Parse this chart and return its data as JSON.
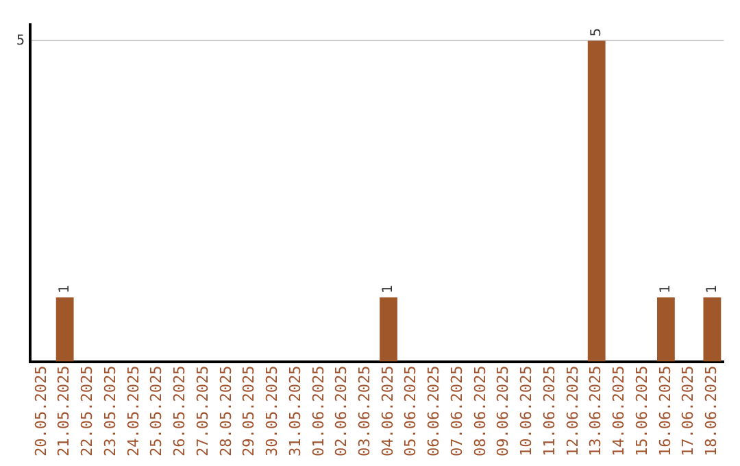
{
  "chart_data": {
    "type": "bar",
    "categories": [
      "20.05.2025",
      "21.05.2025",
      "22.05.2025",
      "23.05.2025",
      "24.05.2025",
      "25.05.2025",
      "26.05.2025",
      "27.05.2025",
      "28.05.2025",
      "29.05.2025",
      "30.05.2025",
      "31.05.2025",
      "01.06.2025",
      "02.06.2025",
      "03.06.2025",
      "04.06.2025",
      "05.06.2025",
      "06.06.2025",
      "07.06.2025",
      "08.06.2025",
      "09.06.2025",
      "10.06.2025",
      "11.06.2025",
      "12.06.2025",
      "13.06.2025",
      "14.06.2025",
      "15.06.2025",
      "16.06.2025",
      "17.06.2025",
      "18.06.2025"
    ],
    "values": [
      0,
      1,
      0,
      0,
      0,
      0,
      0,
      0,
      0,
      0,
      0,
      0,
      0,
      0,
      0,
      1,
      0,
      0,
      0,
      0,
      0,
      0,
      0,
      0,
      5,
      0,
      0,
      1,
      0,
      1
    ],
    "color": "#a0572a",
    "value_labels": [
      null,
      "1",
      null,
      null,
      null,
      null,
      null,
      null,
      null,
      null,
      null,
      null,
      null,
      null,
      null,
      "1",
      null,
      null,
      null,
      null,
      null,
      null,
      null,
      null,
      "5",
      null,
      null,
      "1",
      null,
      "1"
    ],
    "ylim": [
      0,
      5.25
    ],
    "yticks": [
      5
    ],
    "grid": "y",
    "legend": false
  }
}
